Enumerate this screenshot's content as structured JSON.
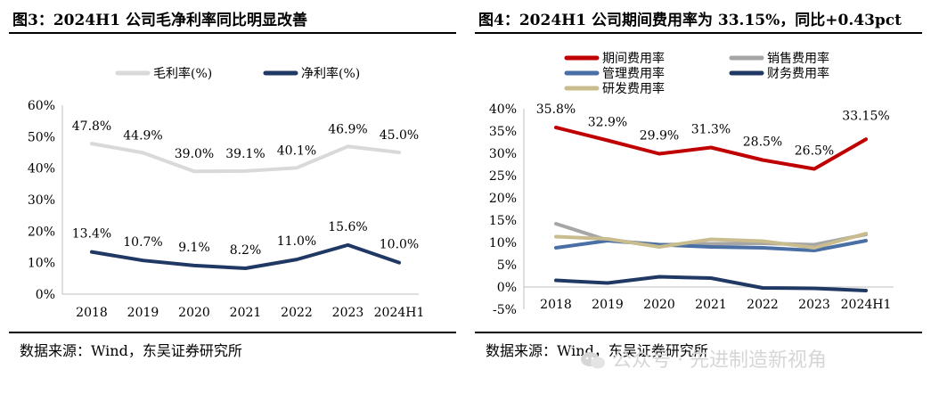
{
  "figure3": {
    "title": "图3：2024H1 公司毛净利率同比明显改善",
    "source": "数据来源：Wind，东吴证券研究所",
    "chart_data": {
      "type": "line",
      "categories": [
        "2018",
        "2019",
        "2020",
        "2021",
        "2022",
        "2023",
        "2024H1"
      ],
      "ylim": [
        0,
        60
      ],
      "yticks": [
        0,
        10,
        20,
        30,
        40,
        50,
        60
      ],
      "ytick_labels": [
        "0%",
        "10%",
        "20%",
        "30%",
        "40%",
        "50%",
        "60%"
      ],
      "legend_position": "top",
      "grid": false,
      "series": [
        {
          "name": "毛利率(%)",
          "color": "#d9d9d9",
          "values": [
            47.8,
            44.9,
            39.0,
            39.1,
            40.1,
            46.9,
            45.0
          ],
          "labels": [
            "47.8%",
            "44.9%",
            "39.0%",
            "39.1%",
            "40.1%",
            "46.9%",
            "45.0%"
          ]
        },
        {
          "name": "净利率(%)",
          "color": "#1f3864",
          "values": [
            13.4,
            10.7,
            9.1,
            8.2,
            11.0,
            15.6,
            10.0
          ],
          "labels": [
            "13.4%",
            "10.7%",
            "9.1%",
            "8.2%",
            "11.0%",
            "15.6%",
            "10.0%"
          ]
        }
      ]
    }
  },
  "figure4": {
    "title": "图4：2024H1 公司期间费用率为 33.15%，同比+0.43pct",
    "source": "数据来源：Wind，东吴证券研究所",
    "chart_data": {
      "type": "line",
      "categories": [
        "2018",
        "2019",
        "2020",
        "2021",
        "2022",
        "2023",
        "2024H1"
      ],
      "ylim": [
        -5,
        40
      ],
      "yticks": [
        -5,
        0,
        5,
        10,
        15,
        20,
        25,
        30,
        35,
        40
      ],
      "ytick_labels": [
        "-5%",
        "0%",
        "5%",
        "10%",
        "15%",
        "20%",
        "25%",
        "30%",
        "35%",
        "40%"
      ],
      "legend_position": "top",
      "grid": false,
      "series": [
        {
          "name": "期间费用率",
          "color": "#c00000",
          "values": [
            35.8,
            32.9,
            29.9,
            31.3,
            28.5,
            26.5,
            33.15
          ],
          "labels": [
            "35.8%",
            "32.9%",
            "29.9%",
            "31.3%",
            "28.5%",
            "26.5%",
            "33.15%"
          ]
        },
        {
          "name": "销售费用率",
          "color": "#a6a6a6",
          "values": [
            14.2,
            10.5,
            9.5,
            9.7,
            9.8,
            9.5,
            11.8
          ]
        },
        {
          "name": "管理费用率",
          "color": "#4a6fa5",
          "values": [
            8.8,
            10.4,
            9.5,
            9.0,
            8.8,
            8.2,
            10.4
          ]
        },
        {
          "name": "财务费用率",
          "color": "#1f3864",
          "values": [
            1.5,
            0.9,
            2.3,
            2.0,
            -0.2,
            -0.3,
            -0.8
          ]
        },
        {
          "name": "研发费用率",
          "color": "#c9bc8f",
          "values": [
            11.3,
            10.8,
            9.0,
            10.7,
            10.3,
            8.8,
            12.0
          ]
        }
      ]
    }
  },
  "watermark": {
    "text": "公众号 · 先进制造新视角",
    "icon": "wechat-icon"
  }
}
